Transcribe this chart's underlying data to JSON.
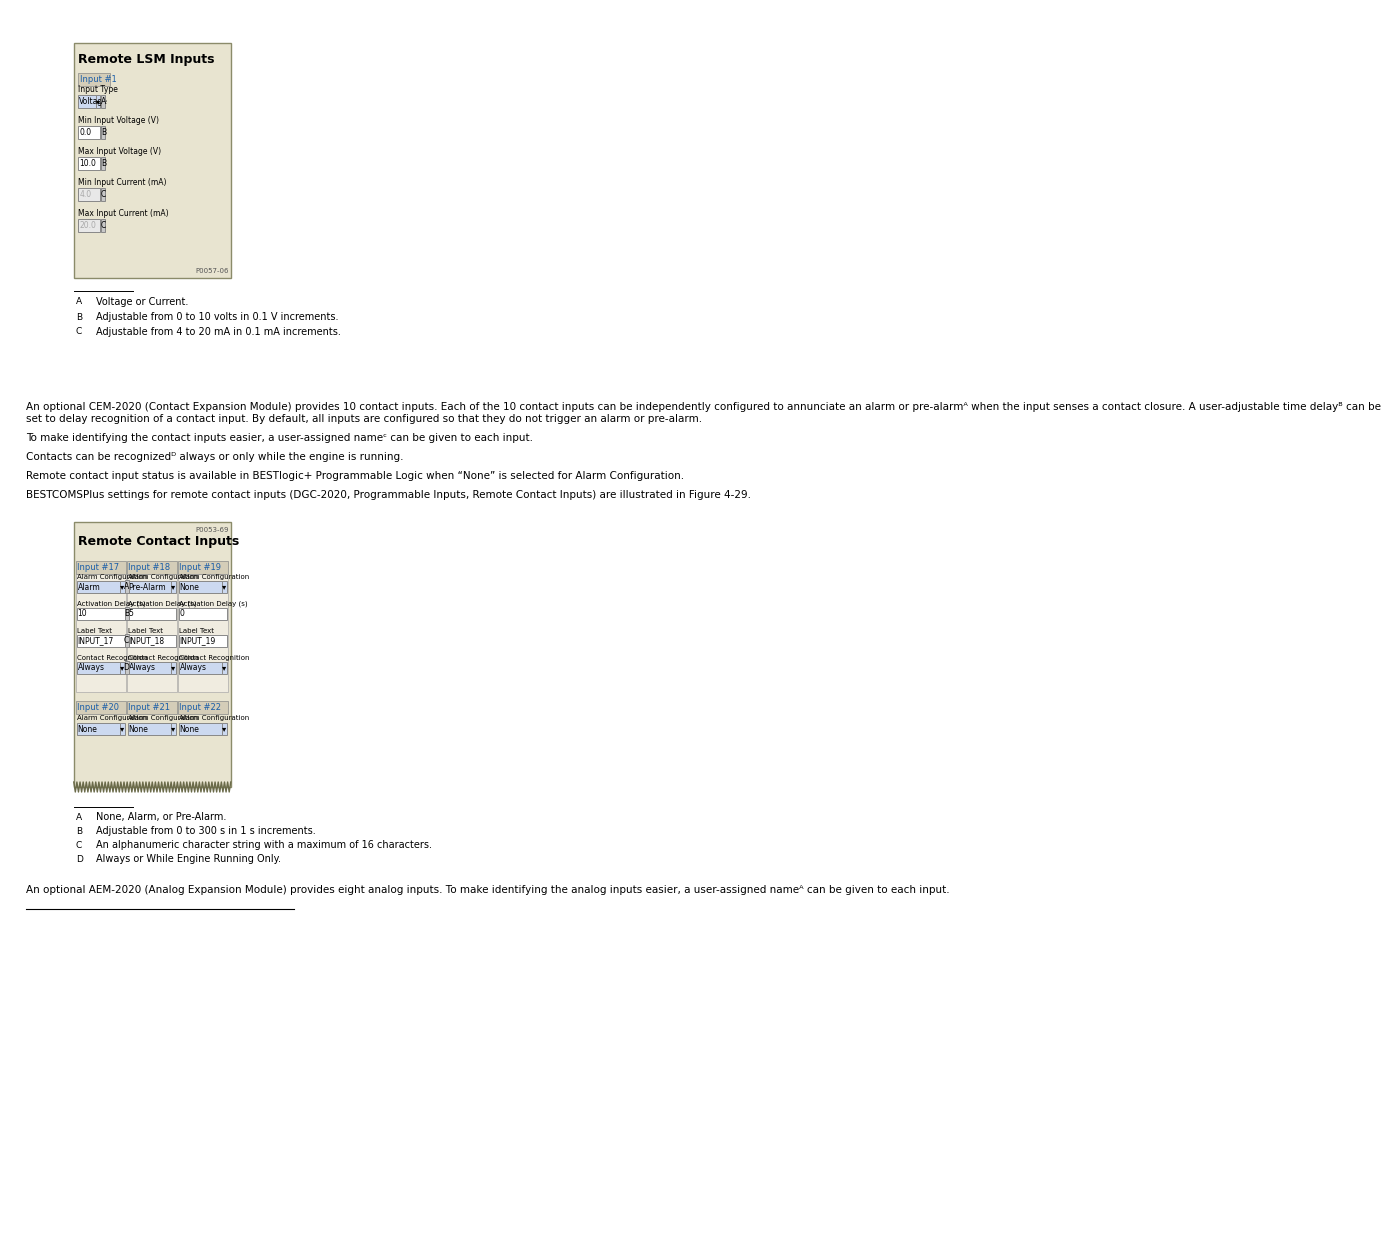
{
  "page_bg": "#ffffff",
  "fig_bg_color": "#e8e4d0",
  "fig_border_color": "#8b8b6a",
  "fig1_title": "Remote LSM Inputs",
  "fig1_input_label": "Input #1",
  "fig1_input_label_color": "#1a5ea8",
  "fig1_fields": [
    {
      "label": "Input Type",
      "value": "Voltage",
      "badge": "A",
      "is_dropdown": true,
      "disabled": false
    },
    {
      "label": "Min Input Voltage (V)",
      "value": "0.0",
      "badge": "B",
      "is_dropdown": false,
      "disabled": false
    },
    {
      "label": "Max Input Voltage (V)",
      "value": "10.0",
      "badge": "B",
      "is_dropdown": false,
      "disabled": false
    },
    {
      "label": "Min Input Current (mA)",
      "value": "4.0",
      "badge": "C",
      "is_dropdown": false,
      "disabled": true
    },
    {
      "label": "Max Input Current (mA)",
      "value": "20.0",
      "badge": "C",
      "is_dropdown": false,
      "disabled": true
    }
  ],
  "fig1_code": "P0057-06",
  "footnotes1": [
    {
      "letter": "A",
      "text": "Voltage or Current."
    },
    {
      "letter": "B",
      "text": "Adjustable from 0 to 10 volts in 0.1 V increments."
    },
    {
      "letter": "C",
      "text": "Adjustable from 4 to 20 mA in 0.1 mA increments."
    }
  ],
  "para1": "An optional CEM-2020 (Contact Expansion Module) provides 10 contact inputs. Each of the 10 contact inputs can be independently configured to annunciate an alarm or pre-alarmᴬ when the input senses a contact closure. A user-adjustable time delayᴮ can be set to delay recognition of a contact input. By default, all inputs are configured so that they do not trigger an alarm or pre-alarm.",
  "para2": "To make identifying the contact inputs easier, a user-assigned nameᶜ can be given to each input.",
  "para3": "Contacts can be recognizedᴰ always or only while the engine is running.",
  "para4": "Remote contact input status is available in BESTlogic+ Programmable Logic when “None” is selected for Alarm Configuration.",
  "para5": "BESTCOMSPlus settings for remote contact inputs (DGC-2020, Programmable Inputs, Remote Contact Inputs) are illustrated in Figure 4-29.",
  "fig2_code": "P0053-69",
  "fig2_title": "Remote Contact Inputs",
  "fig2_inputs": [
    {
      "id": "Input #17",
      "fields": [
        {
          "label": "Alarm Configuration",
          "value": "Alarm",
          "badge": "A",
          "is_dropdown": true
        },
        {
          "label": "Activation Delay (s)",
          "value": "10",
          "badge": "B",
          "is_dropdown": false
        },
        {
          "label": "Label Text",
          "value": "INPUT_17",
          "badge": "C",
          "is_dropdown": false
        },
        {
          "label": "Contact Recognition",
          "value": "Always",
          "badge": "D",
          "is_dropdown": true
        }
      ]
    },
    {
      "id": "Input #18",
      "fields": [
        {
          "label": "Alarm Configuration",
          "value": "Pre-Alarm",
          "badge": null,
          "is_dropdown": true
        },
        {
          "label": "Activation Delay (s)",
          "value": "5",
          "badge": null,
          "is_dropdown": false
        },
        {
          "label": "Label Text",
          "value": "INPUT_18",
          "badge": null,
          "is_dropdown": false
        },
        {
          "label": "Contact Recognition",
          "value": "Always",
          "badge": null,
          "is_dropdown": true
        }
      ]
    },
    {
      "id": "Input #19",
      "fields": [
        {
          "label": "Alarm Configuration",
          "value": "None",
          "badge": null,
          "is_dropdown": true
        },
        {
          "label": "Activation Delay (s)",
          "value": "0",
          "badge": null,
          "is_dropdown": false
        },
        {
          "label": "Label Text",
          "value": "INPUT_19",
          "badge": null,
          "is_dropdown": false
        },
        {
          "label": "Contact Recognition",
          "value": "Always",
          "badge": null,
          "is_dropdown": true
        }
      ]
    }
  ],
  "fig2_row2": [
    {
      "id": "Input #20",
      "alarm_value": "None"
    },
    {
      "id": "Input #21",
      "alarm_value": "None"
    },
    {
      "id": "Input #22",
      "alarm_value": "None"
    }
  ],
  "footnotes2": [
    {
      "letter": "A",
      "text": "None, Alarm, or Pre-Alarm."
    },
    {
      "letter": "B",
      "text": "Adjustable from 0 to 300 s in 1 s increments."
    },
    {
      "letter": "C",
      "text": "An alphanumeric character string with a maximum of 16 characters."
    },
    {
      "letter": "D",
      "text": "Always or While Engine Running Only."
    }
  ],
  "para6": "An optional AEM-2020 (Analog Expansion Module) provides eight analog inputs. To make identifying the analog inputs easier, a user-assigned nameᴬ can be given to each input.",
  "input_label_color": "#1a5ea8",
  "dropdown_bg": "#ccd9f0",
  "field_bg": "#ffffff",
  "field_disabled_bg": "#e8e8e8",
  "field_border": "#888888",
  "badge_bg": "#c8c8c8",
  "badge_border": "#888888"
}
